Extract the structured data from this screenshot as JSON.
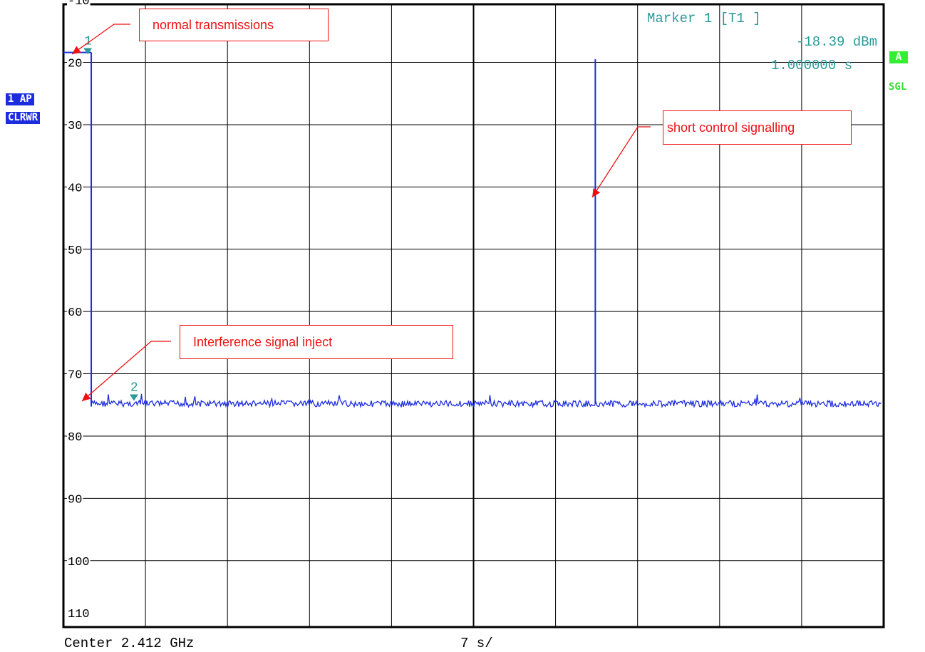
{
  "chart_data": {
    "type": "line",
    "title": "",
    "xlabel": "",
    "ylabel": "",
    "ylim": [
      -115,
      -10
    ],
    "xlim": [
      0,
      70
    ],
    "y_ticks": [
      "-10",
      "20",
      "30",
      "40",
      "50",
      "60",
      "70",
      "80",
      "90",
      "100",
      "110"
    ],
    "y_tick_values": [
      -10,
      -20,
      -30,
      -40,
      -50,
      -60,
      -70,
      -80,
      -90,
      -100,
      -110
    ],
    "grid": true,
    "series": [
      {
        "color": "#1c2de0",
        "x": [
          0,
          1.0,
          1.0,
          1.3,
          1.3,
          45.0,
          45.0,
          45.2,
          45.2,
          70
        ],
        "y": [
          -18.4,
          -18.4,
          -18.4,
          -18.4,
          -74.8,
          -74.8,
          -19.5,
          -19.5,
          -74.8,
          -74.8
        ],
        "noise_floor": -74.8
      }
    ],
    "markers": [
      {
        "label": "1",
        "x": 1.0,
        "y": -18.39
      },
      {
        "label": "2",
        "x": 5.0,
        "y": -74.0
      }
    ]
  },
  "marker_readout": {
    "line1": "Marker 1 [T1 ]",
    "line2": "-18.39 dBm",
    "line3": "1.000000 s"
  },
  "side_labels": {
    "trace_mode": "1 AP",
    "trace_detector": "CLRWR",
    "status_a": "A",
    "status_sgl": "SGL"
  },
  "annotations": [
    {
      "text": "normal transmissions"
    },
    {
      "text": "short control signalling"
    },
    {
      "text": "Interference signal inject"
    }
  ],
  "footer": {
    "center": "Center 2.412 GHz",
    "sweep": "7 s/"
  },
  "colors": {
    "trace": "#1c2de0",
    "marker": "#2a9a9a",
    "annotation": "#ee1111",
    "status": "#33dd33"
  }
}
